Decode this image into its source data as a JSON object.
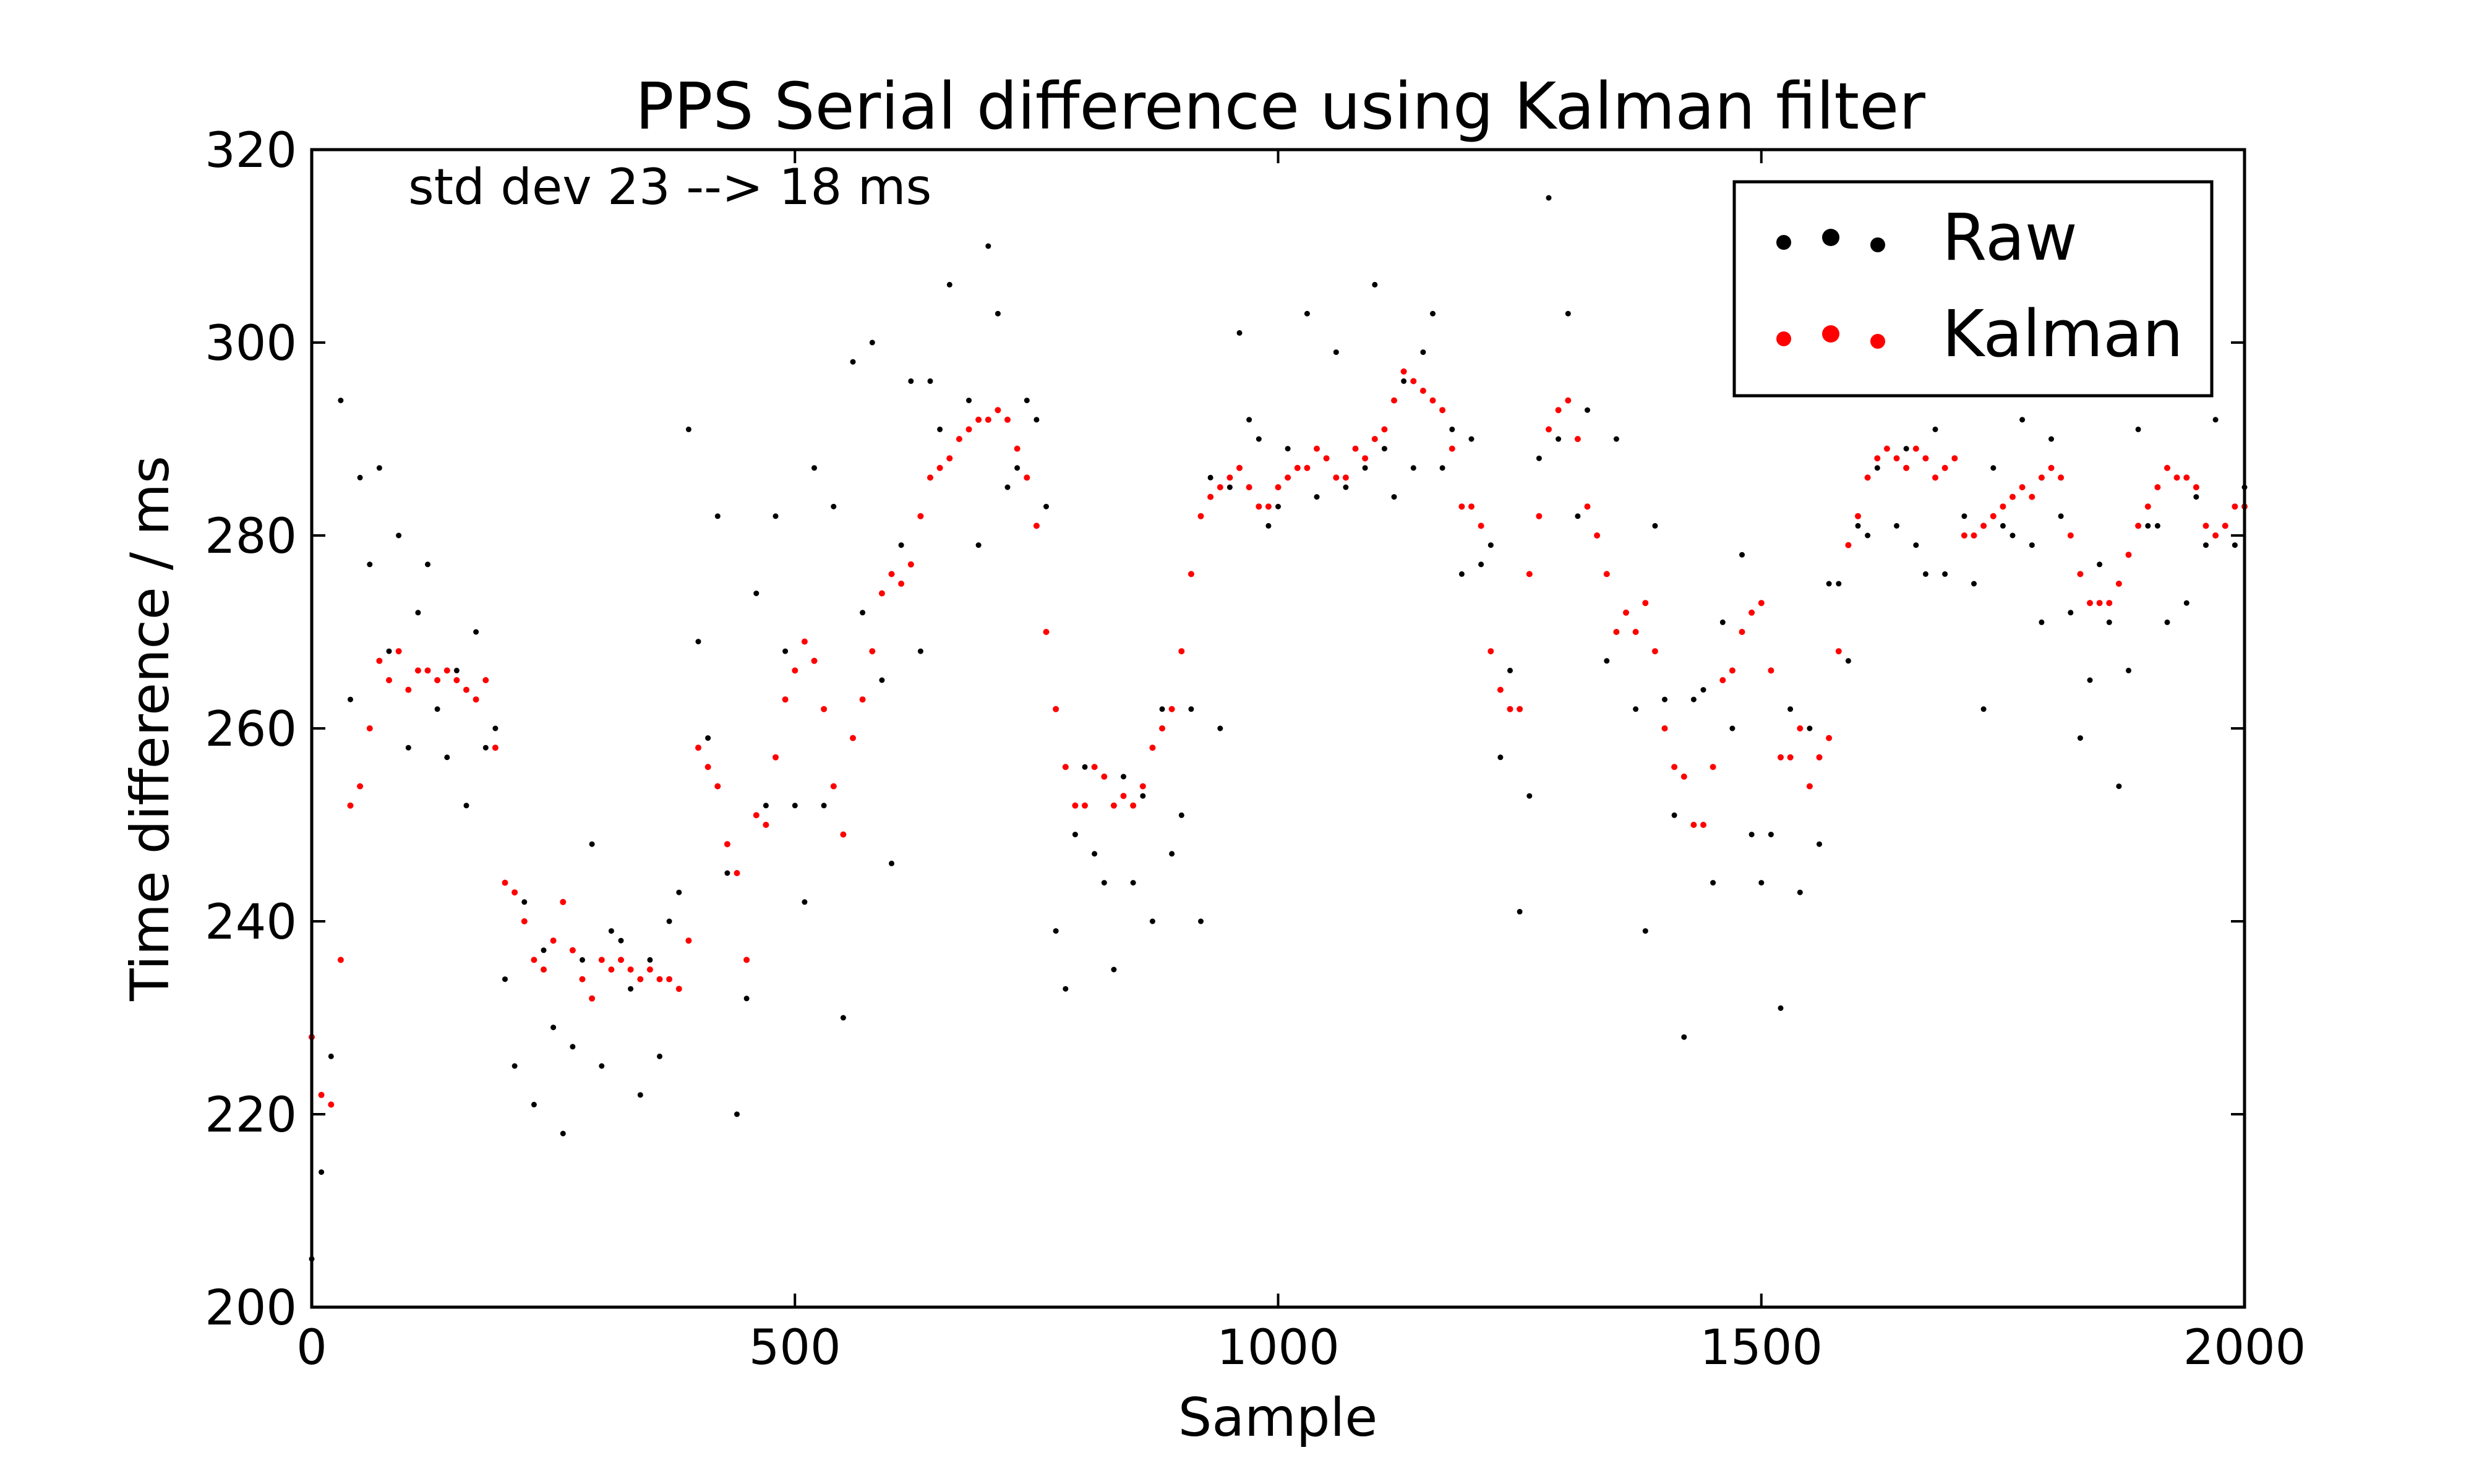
{
  "chart_data": {
    "type": "scatter",
    "title": "PPS Serial difference using Kalman filter",
    "xlabel": "Sample",
    "ylabel": "Time difference / ms",
    "xlim": [
      0,
      2000
    ],
    "ylim": [
      200,
      320
    ],
    "xticks": [
      "0",
      "500",
      "1000",
      "1500",
      "2000"
    ],
    "yticks": [
      "200",
      "220",
      "240",
      "260",
      "280",
      "300",
      "320"
    ],
    "annotation": "std dev 23 --> 18 ms",
    "legend_position": "top-right",
    "grid": false,
    "series": [
      {
        "name": "Raw",
        "color": "#000000",
        "note": "noisy raw samples scattered around the Kalman trend",
        "x": [
          0,
          10,
          20,
          30,
          40,
          50,
          60,
          70,
          80,
          90,
          100,
          110,
          120,
          130,
          140,
          150,
          160,
          170,
          180,
          190,
          200,
          210,
          220,
          230,
          240,
          250,
          260,
          270,
          280,
          290,
          300,
          310,
          320,
          330,
          340,
          350,
          360,
          370,
          380,
          390,
          400,
          410,
          420,
          430,
          440,
          450,
          460,
          470,
          480,
          490,
          500,
          510,
          520,
          530,
          540,
          550,
          560,
          570,
          580,
          590,
          600,
          610,
          620,
          630,
          640,
          650,
          660,
          670,
          680,
          690,
          700,
          710,
          720,
          730,
          740,
          750,
          760,
          770,
          780,
          790,
          800,
          810,
          820,
          830,
          840,
          850,
          860,
          870,
          880,
          890,
          900,
          910,
          920,
          930,
          940,
          950,
          960,
          970,
          980,
          990,
          1000,
          1010,
          1020,
          1030,
          1040,
          1050,
          1060,
          1070,
          1080,
          1090,
          1100,
          1110,
          1120,
          1130,
          1140,
          1150,
          1160,
          1170,
          1180,
          1190,
          1200,
          1210,
          1220,
          1230,
          1240,
          1250,
          1260,
          1270,
          1280,
          1290,
          1300,
          1310,
          1320,
          1330,
          1340,
          1350,
          1360,
          1370,
          1380,
          1390,
          1400,
          1410,
          1420,
          1430,
          1440,
          1450,
          1460,
          1470,
          1480,
          1490,
          1500,
          1510,
          1520,
          1530,
          1540,
          1550,
          1560,
          1570,
          1580,
          1590,
          1600,
          1610,
          1620,
          1630,
          1640,
          1650,
          1660,
          1670,
          1680,
          1690,
          1700,
          1710,
          1720,
          1730,
          1740,
          1750,
          1760,
          1770,
          1780,
          1790,
          1800,
          1810,
          1820,
          1830,
          1840,
          1850,
          1860,
          1870,
          1880,
          1890,
          1900,
          1910,
          1920,
          1930,
          1940,
          1950,
          1960,
          1970,
          1980,
          1990,
          2000
        ],
        "y": [
          205,
          214,
          226,
          294,
          263,
          286,
          277,
          287,
          268,
          280,
          258,
          272,
          277,
          262,
          257,
          266,
          252,
          270,
          258,
          260,
          234,
          225,
          242,
          221,
          237,
          229,
          218,
          227,
          236,
          248,
          225,
          239,
          238,
          233,
          222,
          236,
          226,
          240,
          243,
          291,
          269,
          259,
          282,
          245,
          220,
          232,
          274,
          252,
          282,
          268,
          252,
          242,
          287,
          252,
          283,
          230,
          298,
          272,
          300,
          265,
          246,
          279,
          296,
          268,
          296,
          291,
          306,
          290,
          294,
          279,
          310,
          303,
          285,
          287,
          294,
          292,
          283,
          239,
          233,
          249,
          256,
          247,
          244,
          235,
          255,
          244,
          253,
          240,
          262,
          247,
          251,
          262,
          240,
          286,
          260,
          285,
          301,
          292,
          290,
          281,
          283,
          289,
          287,
          303,
          284,
          288,
          299,
          285,
          289,
          287,
          306,
          289,
          284,
          296,
          287,
          299,
          303,
          287,
          291,
          276,
          290,
          277,
          279,
          257,
          266,
          241,
          253,
          288,
          315,
          290,
          303,
          282,
          293,
          280,
          267,
          290,
          272,
          262,
          239,
          281,
          263,
          251,
          228,
          263,
          264,
          244,
          271,
          260,
          278,
          249,
          244,
          249,
          231,
          262,
          243,
          260,
          248,
          275,
          275,
          267,
          281,
          280,
          287,
          295,
          281,
          289,
          279,
          276,
          291,
          276,
          288,
          282,
          275,
          262,
          287,
          281,
          280,
          292,
          279,
          271,
          290,
          282,
          272,
          259,
          265,
          277,
          271,
          254,
          266,
          291,
          281,
          281,
          271,
          295,
          273,
          284,
          279,
          292,
          281,
          279,
          285
        ]
      },
      {
        "name": "Kalman",
        "color": "#ff0000",
        "note": "smoothed Kalman filter output",
        "x": [
          0,
          10,
          20,
          30,
          40,
          50,
          60,
          70,
          80,
          90,
          100,
          110,
          120,
          130,
          140,
          150,
          160,
          170,
          180,
          190,
          200,
          210,
          220,
          230,
          240,
          250,
          260,
          270,
          280,
          290,
          300,
          310,
          320,
          330,
          340,
          350,
          360,
          370,
          380,
          390,
          400,
          410,
          420,
          430,
          440,
          450,
          460,
          470,
          480,
          490,
          500,
          510,
          520,
          530,
          540,
          550,
          560,
          570,
          580,
          590,
          600,
          610,
          620,
          630,
          640,
          650,
          660,
          670,
          680,
          690,
          700,
          710,
          720,
          730,
          740,
          750,
          760,
          770,
          780,
          790,
          800,
          810,
          820,
          830,
          840,
          850,
          860,
          870,
          880,
          890,
          900,
          910,
          920,
          930,
          940,
          950,
          960,
          970,
          980,
          990,
          1000,
          1010,
          1020,
          1030,
          1040,
          1050,
          1060,
          1070,
          1080,
          1090,
          1100,
          1110,
          1120,
          1130,
          1140,
          1150,
          1160,
          1170,
          1180,
          1190,
          1200,
          1210,
          1220,
          1230,
          1240,
          1250,
          1260,
          1270,
          1280,
          1290,
          1300,
          1310,
          1320,
          1330,
          1340,
          1350,
          1360,
          1370,
          1380,
          1390,
          1400,
          1410,
          1420,
          1430,
          1440,
          1450,
          1460,
          1470,
          1480,
          1490,
          1500,
          1510,
          1520,
          1530,
          1540,
          1550,
          1560,
          1570,
          1580,
          1590,
          1600,
          1610,
          1620,
          1630,
          1640,
          1650,
          1660,
          1670,
          1680,
          1690,
          1700,
          1710,
          1720,
          1730,
          1740,
          1750,
          1760,
          1770,
          1780,
          1790,
          1800,
          1810,
          1820,
          1830,
          1840,
          1850,
          1860,
          1870,
          1880,
          1890,
          1900,
          1910,
          1920,
          1930,
          1940,
          1950,
          1960,
          1970,
          1980,
          1990,
          2000
        ],
        "y": [
          228,
          222,
          221,
          236,
          252,
          254,
          260,
          267,
          265,
          268,
          264,
          266,
          266,
          265,
          266,
          265,
          264,
          263,
          265,
          258,
          244,
          243,
          240,
          236,
          235,
          238,
          242,
          237,
          234,
          232,
          236,
          235,
          236,
          235,
          234,
          235,
          234,
          234,
          233,
          238,
          258,
          256,
          254,
          248,
          245,
          236,
          251,
          250,
          257,
          263,
          266,
          269,
          267,
          262,
          254,
          249,
          259,
          263,
          268,
          274,
          276,
          275,
          277,
          282,
          286,
          287,
          288,
          290,
          291,
          292,
          292,
          293,
          292,
          289,
          286,
          281,
          270,
          262,
          256,
          252,
          252,
          256,
          255,
          252,
          253,
          252,
          254,
          258,
          260,
          262,
          268,
          276,
          282,
          284,
          285,
          286,
          287,
          285,
          283,
          283,
          285,
          286,
          287,
          287,
          289,
          288,
          286,
          286,
          289,
          288,
          290,
          291,
          294,
          297,
          296,
          295,
          294,
          293,
          289,
          283,
          283,
          281,
          268,
          264,
          262,
          262,
          276,
          282,
          291,
          293,
          294,
          290,
          283,
          280,
          276,
          270,
          272,
          270,
          273,
          268,
          260,
          256,
          255,
          250,
          250,
          256,
          265,
          266,
          270,
          272,
          273,
          266,
          257,
          257,
          260,
          254,
          257,
          259,
          268,
          279,
          282,
          286,
          288,
          289,
          288,
          287,
          289,
          288,
          286,
          287,
          288,
          280,
          280,
          281,
          282,
          283,
          284,
          285,
          284,
          286,
          287,
          286,
          280,
          276,
          273,
          273,
          273,
          275,
          278,
          281,
          283,
          285,
          287,
          286,
          286,
          285,
          281,
          280,
          281,
          283,
          283
        ]
      }
    ]
  }
}
